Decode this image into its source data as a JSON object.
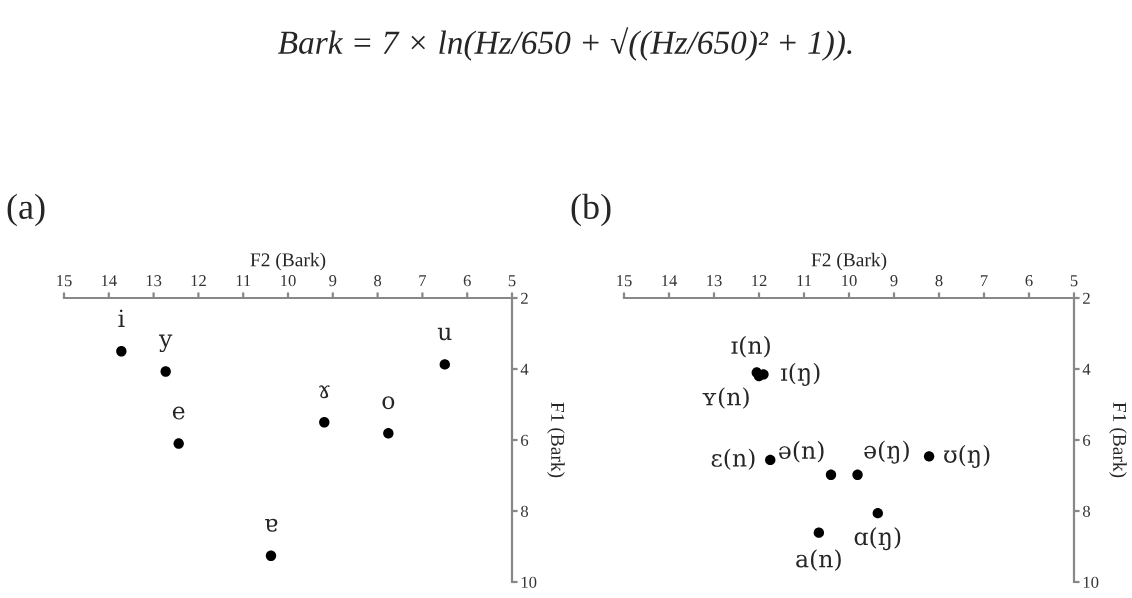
{
  "chart_data": [
    {
      "type": "scatter",
      "title": "(a)",
      "xlabel": "F2 (Bark)",
      "ylabel": "F1 (Bark)",
      "marker": "circle",
      "grid": false,
      "xlim": [
        15,
        5
      ],
      "xticks": [
        15,
        14,
        13,
        12,
        11,
        10,
        9,
        8,
        7,
        6,
        5
      ],
      "ylim": [
        10,
        2
      ],
      "yticks": [
        2,
        4,
        6,
        8,
        10
      ],
      "series": [
        {
          "color": "#000000",
          "x": [
            13.72,
            12.73,
            12.44,
            9.19,
            7.76,
            6.5,
            10.38
          ],
          "values": [
            3.5,
            4.07,
            6.1,
            5.5,
            5.81,
            3.87,
            9.26
          ]
        }
      ],
      "annotations": [
        "Bark = 7 × ln(Hz/650 + √((Hz/650)² + 1)).",
        {
          "text": "i",
          "x": 13.72,
          "y": 3.5
        },
        {
          "text": "y",
          "x": 12.73,
          "y": 4.07
        },
        {
          "text": "e",
          "x": 12.44,
          "y": 6.1
        },
        {
          "text": "ɤ",
          "x": 9.19,
          "y": 5.5
        },
        {
          "text": "o",
          "x": 7.76,
          "y": 5.81
        },
        {
          "text": "u",
          "x": 6.5,
          "y": 3.87
        },
        {
          "text": "ɐ",
          "x": 10.38,
          "y": 9.26
        }
      ]
    },
    {
      "type": "scatter",
      "title": "(b)",
      "xlabel": "F2 (Bark)",
      "ylabel": "F1 (Bark)",
      "marker": "circle",
      "grid": false,
      "xlim": [
        15,
        5
      ],
      "xticks": [
        15,
        14,
        13,
        12,
        11,
        10,
        9,
        8,
        7,
        6,
        5
      ],
      "ylim": [
        10,
        2
      ],
      "yticks": [
        2,
        4,
        6,
        8,
        10
      ],
      "series": [
        {
          "color": "#000000",
          "x": [
            12.05,
            11.9,
            12.0,
            11.75,
            10.4,
            9.81,
            8.22,
            9.36,
            10.67
          ],
          "values": [
            4.1,
            4.15,
            4.2,
            6.56,
            6.98,
            6.98,
            6.46,
            8.06,
            8.61
          ]
        }
      ],
      "annotations": [
        {
          "text": "ɪ(n)",
          "x": 12.05,
          "y": 4.1
        },
        {
          "text": "ɪ(ŋ)",
          "x": 11.9,
          "y": 4.15
        },
        {
          "text": "ʏ(n)",
          "x": 12.0,
          "y": 4.2
        },
        {
          "text": "ɛ(n)",
          "x": 11.75,
          "y": 6.56
        },
        {
          "text": "ə(n)",
          "x": 10.4,
          "y": 6.98
        },
        {
          "text": "ə(ŋ)",
          "x": 9.81,
          "y": 6.98
        },
        {
          "text": "ʊ(ŋ)",
          "x": 8.22,
          "y": 6.46
        },
        {
          "text": "ɑ(ŋ)",
          "x": 9.36,
          "y": 8.06
        },
        {
          "text": "a(n)",
          "x": 10.67,
          "y": 8.61
        }
      ]
    }
  ]
}
